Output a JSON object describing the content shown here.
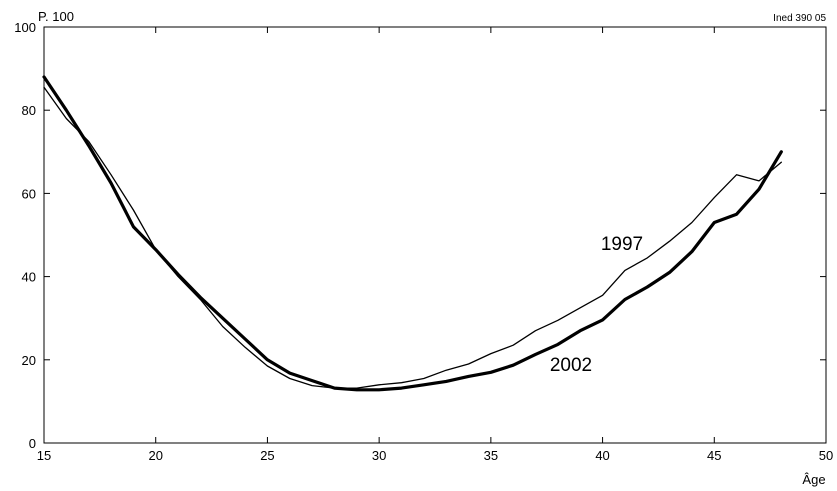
{
  "chart_data": {
    "type": "line",
    "title": "",
    "ylabel": "P. 100",
    "xlabel": "Âge",
    "source_note": "Ined 390 05",
    "xlim": [
      15,
      50
    ],
    "ylim": [
      0,
      100
    ],
    "x_ticks": [
      15,
      20,
      25,
      30,
      35,
      40,
      45,
      50
    ],
    "y_ticks": [
      0,
      20,
      40,
      60,
      80,
      100
    ],
    "grid": false,
    "legend": "none",
    "series": [
      {
        "name": "1997",
        "line_weight": "thin",
        "x": [
          15,
          16,
          17,
          18,
          19,
          20,
          21,
          22,
          23,
          24,
          25,
          26,
          27,
          28,
          29,
          30,
          31,
          32,
          33,
          34,
          35,
          36,
          37,
          38,
          39,
          40,
          41,
          42,
          43,
          44,
          45,
          46,
          47,
          48
        ],
        "y": [
          85.5,
          78,
          72.5,
          64.5,
          56,
          46.5,
          40,
          34.5,
          28,
          23,
          18.5,
          15.5,
          13.8,
          13.2,
          13.2,
          14,
          14.5,
          15.5,
          17.5,
          19,
          21.5,
          23.5,
          27,
          29.5,
          32.5,
          35.5,
          41.5,
          44.5,
          48.5,
          53,
          59,
          64.5,
          63,
          67.5
        ]
      },
      {
        "name": "2002",
        "line_weight": "bold",
        "x": [
          15,
          16,
          17,
          18,
          19,
          20,
          21,
          22,
          23,
          24,
          25,
          26,
          27,
          28,
          29,
          30,
          31,
          32,
          33,
          34,
          35,
          36,
          37,
          38,
          39,
          40,
          41,
          42,
          43,
          44,
          45,
          46,
          47,
          48
        ],
        "y": [
          88,
          80,
          71.5,
          62.5,
          52,
          46.5,
          40.5,
          35,
          30,
          25,
          20,
          16.8,
          15,
          13.2,
          12.8,
          12.8,
          13.2,
          14,
          14.8,
          16,
          17,
          18.7,
          21.3,
          23.7,
          27,
          29.6,
          34.5,
          37.5,
          41,
          46,
          53,
          55,
          61,
          70
        ]
      }
    ]
  }
}
